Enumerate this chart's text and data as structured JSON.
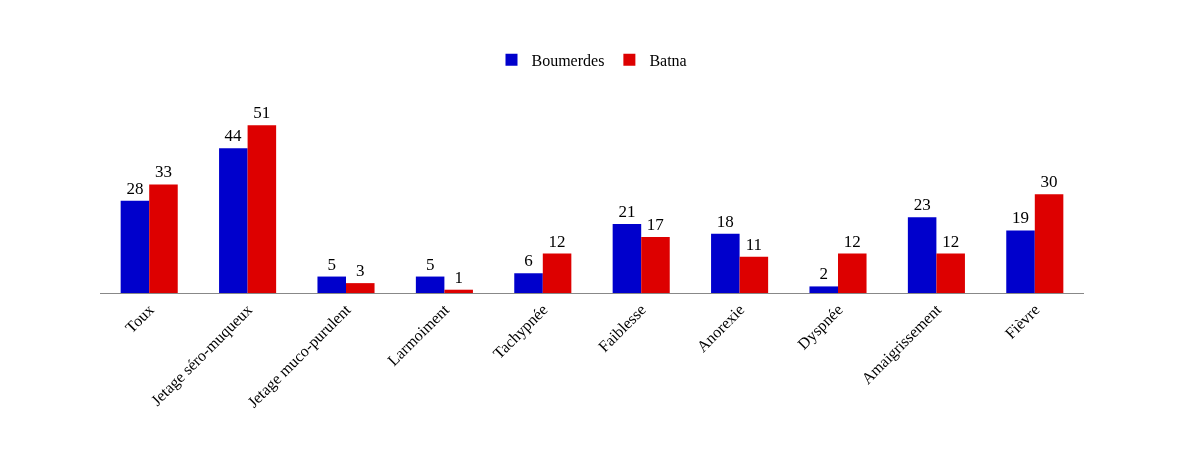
{
  "chart_data": {
    "type": "bar",
    "categories": [
      "Toux",
      "Jetage séro-muqueux",
      "Jetage muco-purulent",
      "Larmoiment",
      "Tachypnée",
      "Faiblesse",
      "Anorexie",
      "Dyspnée",
      "Amaigrissement",
      "Fièvre"
    ],
    "series": [
      {
        "name": "Boumerdes",
        "color": "#0000cc",
        "values": [
          28,
          44,
          5,
          5,
          6,
          21,
          18,
          2,
          23,
          19
        ]
      },
      {
        "name": "Batna",
        "color": "#dd0000",
        "values": [
          33,
          51,
          3,
          1,
          12,
          17,
          11,
          12,
          12,
          30
        ]
      }
    ],
    "data_labels": true,
    "legend": "top"
  }
}
